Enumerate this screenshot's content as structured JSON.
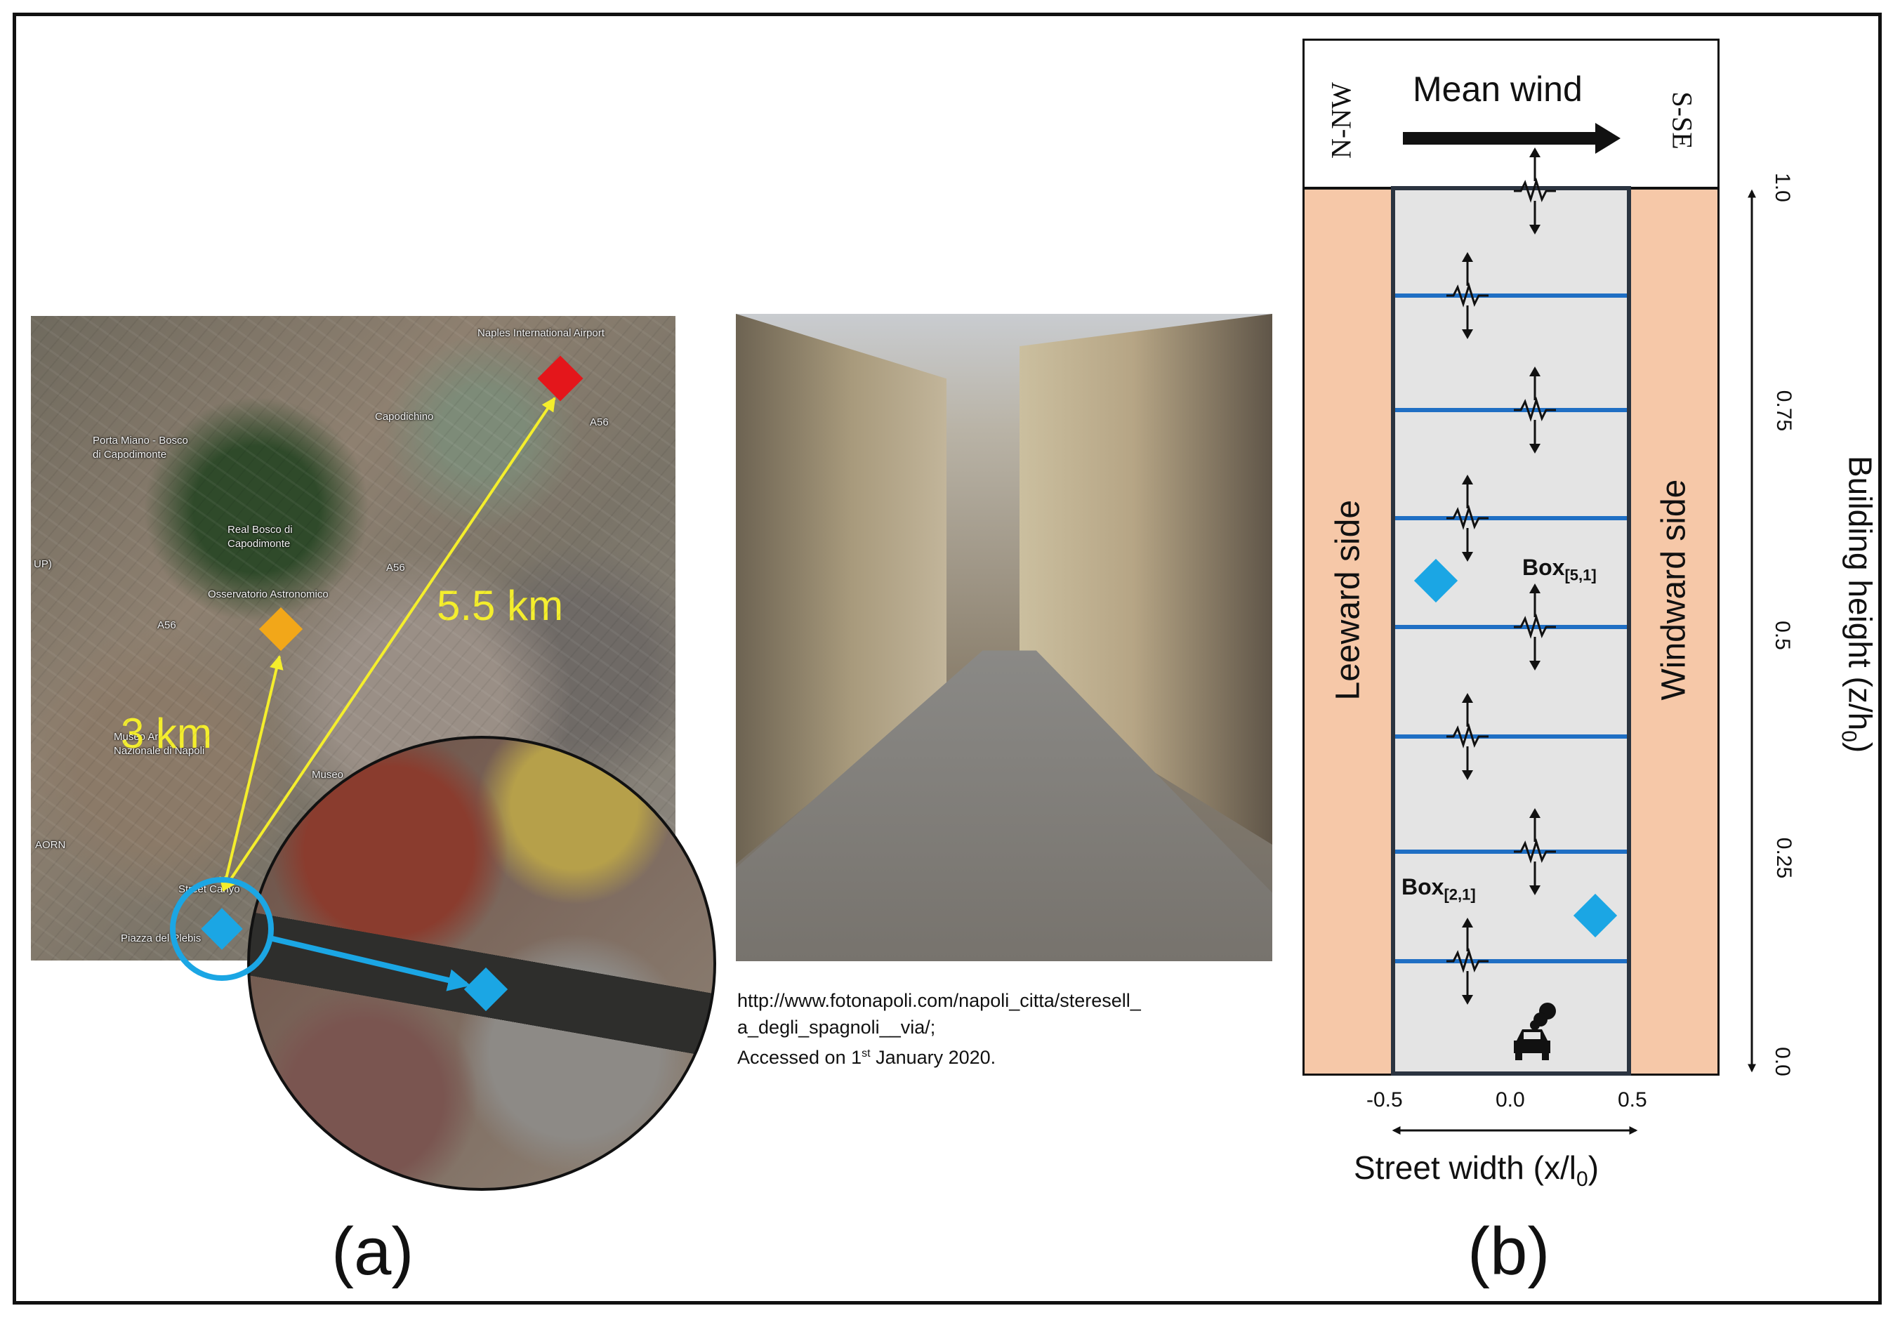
{
  "panel_a": {
    "map": {
      "labels": {
        "airport": "Naples International Airport",
        "capodichino": "Capodichino",
        "porta_miano": "Porta Miano - Bosco\ndi Capodimonte",
        "real_bosco": "Real Bosco di\nCapodimonte",
        "observatory": "Osservatorio Astronomico",
        "museum_arch": "Museo Ar\nNazionale di Napoli",
        "museo": "Museo",
        "street_canyon": "Street Canyo",
        "piazza": "Piazza del Plebis",
        "aorn": "AORN",
        "a56_1": "A56",
        "a56_2": "A56",
        "a56_3": "A56",
        "up": "UP)"
      },
      "distances": {
        "airport": "5.5 km",
        "observatory": "3 km"
      },
      "markers": {
        "airport": "#e4161b",
        "observatory": "#f2a719",
        "street_canyon": "#1ba6e4",
        "arrow_distance": "#f4ee2c"
      }
    },
    "photo_caption": {
      "line1": "http://www.fotonapoli.com/napoli_citta/steresell_",
      "line2": "a_degli_spagnoli__via/;",
      "line3_pre": "Accessed on 1",
      "line3_sup": "st",
      "line3_post": " January 2020."
    },
    "label": "(a)"
  },
  "panel_b": {
    "label": "(b)",
    "wind": {
      "title": "Mean wind",
      "from": "N-NW",
      "to": "S-SE"
    },
    "sides": {
      "leeward": "Leeward side",
      "windward": "Windward side"
    },
    "y_axis": {
      "title_pre": "Building height (z/h",
      "title_sub": "0",
      "title_post": ")",
      "ticks": [
        "1.0",
        "0.75",
        "0.5",
        "0.25",
        "0.0"
      ]
    },
    "x_axis": {
      "title_pre": "Street width (x/l",
      "title_sub": "0",
      "title_post": ")",
      "ticks": [
        "-0.5",
        "0.0",
        "0.5"
      ]
    },
    "boxes": [
      {
        "pre": "Box",
        "sub": "[5,1]"
      },
      {
        "pre": "Box",
        "sub": "[2,1]"
      }
    ],
    "colors": {
      "building": "#f6c8a8",
      "canyon": "#e4e4e4",
      "layer_line": "#1f6fc4",
      "sensor": "#1ba6e4"
    }
  }
}
